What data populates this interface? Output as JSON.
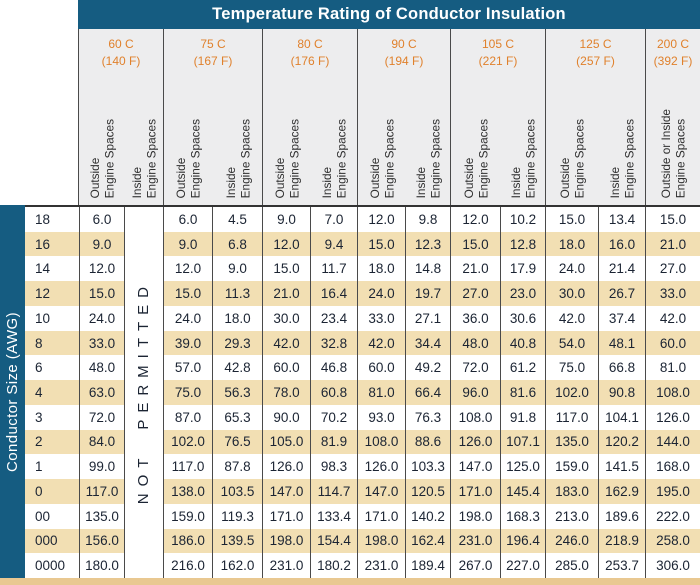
{
  "colors": {
    "header_blue": "#155C81",
    "accent_orange": "#E0812C",
    "row_tan": "#F2DFB3",
    "header_gray": "#EDEDEE",
    "grid_line": "#4A4A4A",
    "text_dark": "#1B2433",
    "divider": "#333333",
    "bottom_strip": "#E9C891",
    "title_text": "#FFFFFF",
    "subheader_text": "#2E2E2E"
  },
  "chart_data": {
    "type": "table",
    "title": "Temperature Rating of Conductor Insulation",
    "row_axis_label": "Conductor Size (AWG)",
    "not_permitted_note": "NOT PERMITTED",
    "groups": [
      {
        "temp_c": "60 C",
        "temp_f": "(140 F)",
        "subcols": [
          "Outside\nEngine Spaces",
          "Inside\nEngine Spaces"
        ]
      },
      {
        "temp_c": "75 C",
        "temp_f": "(167 F)",
        "subcols": [
          "Outside\nEngine Spaces",
          "Inside\nEngine Spaces"
        ]
      },
      {
        "temp_c": "80 C",
        "temp_f": "(176 F)",
        "subcols": [
          "Outside\nEngine Spaces",
          "Inside\nEngine Spaces"
        ]
      },
      {
        "temp_c": "90 C",
        "temp_f": "(194 F)",
        "subcols": [
          "Outside\nEngine Spaces",
          "Inside\nEngine Spaces"
        ]
      },
      {
        "temp_c": "105 C",
        "temp_f": "(221 F)",
        "subcols": [
          "Outside\nEngine Spaces",
          "Inside\nEngine Spaces"
        ]
      },
      {
        "temp_c": "125 C",
        "temp_f": "(257 F)",
        "subcols": [
          "Outside\nEngine Spaces",
          "Inside\nEngine Spaces"
        ]
      },
      {
        "temp_c": "200 C",
        "temp_f": "(392 F)",
        "subcols": [
          "Outside or Inside\nEngine Spaces"
        ]
      }
    ],
    "columns": [
      "60 C Outside Engine Spaces",
      "60 C Inside Engine Spaces",
      "75 C Outside Engine Spaces",
      "75 C Inside Engine Spaces",
      "80 C Outside Engine Spaces",
      "80 C Inside Engine Spaces",
      "90 C Outside Engine Spaces",
      "90 C Inside Engine Spaces",
      "105 C Outside Engine Spaces",
      "105 C Inside Engine Spaces",
      "125 C Outside Engine Spaces",
      "125 C Inside Engine Spaces",
      "200 C Outside or Inside Engine Spaces"
    ],
    "rows": [
      {
        "awg": "18",
        "values": [
          "6.0",
          "NOT PERMITTED",
          "6.0",
          "4.5",
          "9.0",
          "7.0",
          "12.0",
          "9.8",
          "12.0",
          "10.2",
          "15.0",
          "13.4",
          "15.0"
        ]
      },
      {
        "awg": "16",
        "values": [
          "9.0",
          "NOT PERMITTED",
          "9.0",
          "6.8",
          "12.0",
          "9.4",
          "15.0",
          "12.3",
          "15.0",
          "12.8",
          "18.0",
          "16.0",
          "21.0"
        ]
      },
      {
        "awg": "14",
        "values": [
          "12.0",
          "NOT PERMITTED",
          "12.0",
          "9.0",
          "15.0",
          "11.7",
          "18.0",
          "14.8",
          "21.0",
          "17.9",
          "24.0",
          "21.4",
          "27.0"
        ]
      },
      {
        "awg": "12",
        "values": [
          "15.0",
          "NOT PERMITTED",
          "15.0",
          "11.3",
          "21.0",
          "16.4",
          "24.0",
          "19.7",
          "27.0",
          "23.0",
          "30.0",
          "26.7",
          "33.0"
        ]
      },
      {
        "awg": "10",
        "values": [
          "24.0",
          "NOT PERMITTED",
          "24.0",
          "18.0",
          "30.0",
          "23.4",
          "33.0",
          "27.1",
          "36.0",
          "30.6",
          "42.0",
          "37.4",
          "42.0"
        ]
      },
      {
        "awg": "8",
        "values": [
          "33.0",
          "NOT PERMITTED",
          "39.0",
          "29.3",
          "42.0",
          "32.8",
          "42.0",
          "34.4",
          "48.0",
          "40.8",
          "54.0",
          "48.1",
          "60.0"
        ]
      },
      {
        "awg": "6",
        "values": [
          "48.0",
          "NOT PERMITTED",
          "57.0",
          "42.8",
          "60.0",
          "46.8",
          "60.0",
          "49.2",
          "72.0",
          "61.2",
          "75.0",
          "66.8",
          "81.0"
        ]
      },
      {
        "awg": "4",
        "values": [
          "63.0",
          "NOT PERMITTED",
          "75.0",
          "56.3",
          "78.0",
          "60.8",
          "81.0",
          "66.4",
          "96.0",
          "81.6",
          "102.0",
          "90.8",
          "108.0"
        ]
      },
      {
        "awg": "3",
        "values": [
          "72.0",
          "NOT PERMITTED",
          "87.0",
          "65.3",
          "90.0",
          "70.2",
          "93.0",
          "76.3",
          "108.0",
          "91.8",
          "117.0",
          "104.1",
          "126.0"
        ]
      },
      {
        "awg": "2",
        "values": [
          "84.0",
          "NOT PERMITTED",
          "102.0",
          "76.5",
          "105.0",
          "81.9",
          "108.0",
          "88.6",
          "126.0",
          "107.1",
          "135.0",
          "120.2",
          "144.0"
        ]
      },
      {
        "awg": "1",
        "values": [
          "99.0",
          "NOT PERMITTED",
          "117.0",
          "87.8",
          "126.0",
          "98.3",
          "126.0",
          "103.3",
          "147.0",
          "125.0",
          "159.0",
          "141.5",
          "168.0"
        ]
      },
      {
        "awg": "0",
        "values": [
          "117.0",
          "NOT PERMITTED",
          "138.0",
          "103.5",
          "147.0",
          "114.7",
          "147.0",
          "120.5",
          "171.0",
          "145.4",
          "183.0",
          "162.9",
          "195.0"
        ]
      },
      {
        "awg": "00",
        "values": [
          "135.0",
          "NOT PERMITTED",
          "159.0",
          "119.3",
          "171.0",
          "133.4",
          "171.0",
          "140.2",
          "198.0",
          "168.3",
          "213.0",
          "189.6",
          "222.0"
        ]
      },
      {
        "awg": "000",
        "values": [
          "156.0",
          "NOT PERMITTED",
          "186.0",
          "139.5",
          "198.0",
          "154.4",
          "198.0",
          "162.4",
          "231.0",
          "196.4",
          "246.0",
          "218.9",
          "258.0"
        ]
      },
      {
        "awg": "0000",
        "values": [
          "180.0",
          "NOT PERMITTED",
          "216.0",
          "162.0",
          "231.0",
          "180.2",
          "231.0",
          "189.4",
          "267.0",
          "227.0",
          "285.0",
          "253.7",
          "306.0"
        ]
      }
    ]
  }
}
